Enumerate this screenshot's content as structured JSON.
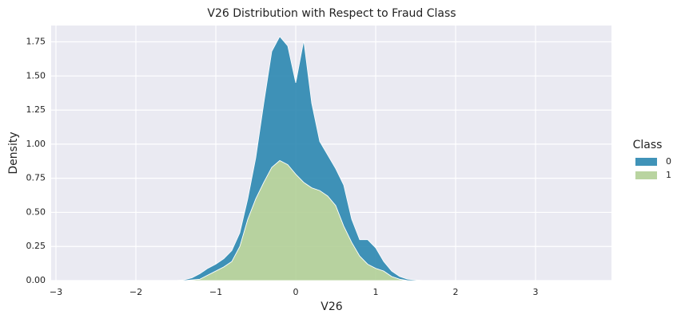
{
  "chart_data": {
    "type": "stacked_area",
    "title": "V26 Distribution with Respect to Fraud Class",
    "x_label": "V26",
    "y_label": "Density",
    "legend_title": "Class",
    "legend": "right",
    "x": [
      -1.5,
      -1.4,
      -1.3,
      -1.2,
      -1.1,
      -1.0,
      -0.9,
      -0.8,
      -0.7,
      -0.6,
      -0.5,
      -0.4,
      -0.3,
      -0.2,
      -0.1,
      0.0,
      0.1,
      0.2,
      0.3,
      0.4,
      0.5,
      0.6,
      0.7,
      0.8,
      0.9,
      1.0,
      1.1,
      1.2,
      1.3,
      1.4,
      1.5,
      1.6
    ],
    "series": [
      {
        "name": "0",
        "color": "#2b87b0",
        "values": [
          0,
          0.005,
          0.015,
          0.04,
          0.05,
          0.05,
          0.06,
          0.08,
          0.1,
          0.15,
          0.3,
          0.58,
          0.85,
          0.91,
          0.87,
          0.67,
          1.04,
          0.62,
          0.36,
          0.3,
          0.27,
          0.3,
          0.17,
          0.12,
          0.18,
          0.15,
          0.07,
          0.04,
          0.02,
          0.01,
          0.005,
          0
        ]
      },
      {
        "name": "1",
        "color": "#b1cf96",
        "values": [
          0,
          0,
          0.005,
          0.01,
          0.04,
          0.07,
          0.1,
          0.14,
          0.25,
          0.45,
          0.6,
          0.72,
          0.83,
          0.88,
          0.85,
          0.78,
          0.72,
          0.68,
          0.66,
          0.62,
          0.55,
          0.4,
          0.28,
          0.18,
          0.12,
          0.09,
          0.07,
          0.03,
          0.01,
          0,
          0,
          0
        ]
      }
    ],
    "xlim": [
      -3.06,
      3.95
    ],
    "xticks": [
      {
        "value": -3,
        "label": "−3"
      },
      {
        "value": -2,
        "label": "−2"
      },
      {
        "value": -1,
        "label": "−1"
      },
      0,
      1,
      2,
      3
    ],
    "ylim": [
      0,
      1.87
    ],
    "yticks": [
      {
        "value": 0,
        "label": "0.00"
      },
      {
        "value": 0.25,
        "label": "0.25"
      },
      {
        "value": 0.5,
        "label": "0.50"
      },
      {
        "value": 0.75,
        "label": "0.75"
      },
      {
        "value": 1,
        "label": "1.00"
      },
      {
        "value": 1.25,
        "label": "1.25"
      },
      {
        "value": 1.5,
        "label": "1.50"
      },
      {
        "value": 1.75,
        "label": "1.75"
      }
    ],
    "grid": true
  }
}
